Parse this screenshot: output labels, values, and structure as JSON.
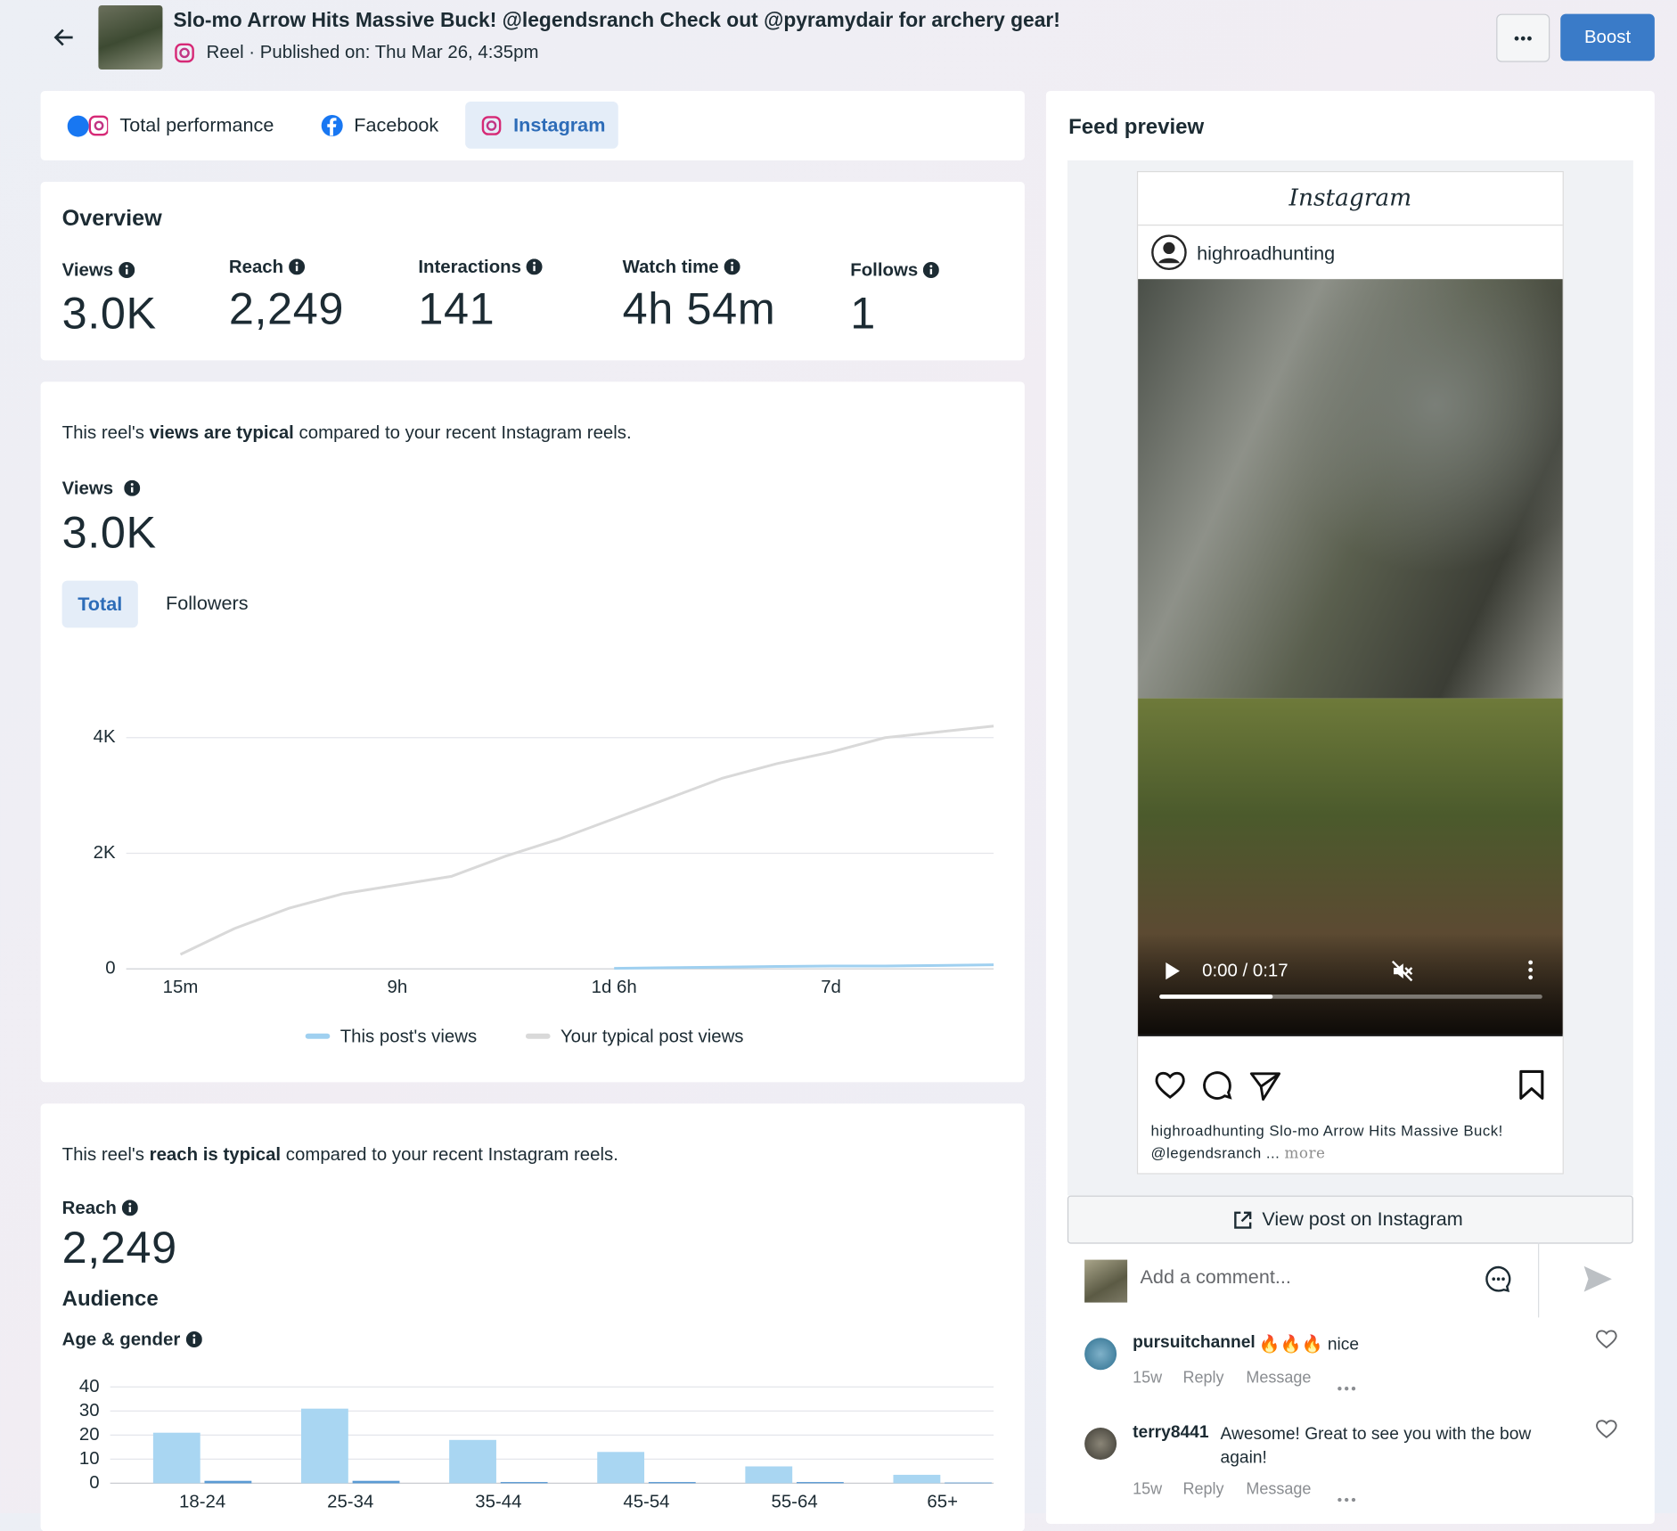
{
  "header": {
    "title": "Slo-mo Arrow Hits Massive Buck! @legendsranch Check out @pyramydair for archery gear!",
    "subtitle": "Reel · Published on: Thu Mar 26, 4:35pm",
    "boost": "Boost"
  },
  "tabs": [
    "Total performance",
    "Facebook",
    "Instagram"
  ],
  "overview": {
    "title": "Overview",
    "metrics": [
      {
        "label": "Views",
        "value": "3.0K"
      },
      {
        "label": "Reach",
        "value": "2,249"
      },
      {
        "label": "Interactions",
        "value": "141"
      },
      {
        "label": "Watch time",
        "value": "4h 54m"
      },
      {
        "label": "Follows",
        "value": "1"
      }
    ]
  },
  "views_card": {
    "summary_pre": "This reel's",
    "summary_bold": "views are typical",
    "summary_post": "compared to your recent Instagram reels.",
    "label": "Views",
    "value": "3.0K",
    "toggles": [
      "Total",
      "Followers"
    ]
  },
  "views_chart": {
    "type": "line",
    "x": [
      0,
      1,
      2,
      3,
      4,
      5,
      6,
      7,
      8,
      9,
      10,
      11,
      12,
      13,
      14,
      15
    ],
    "xlim": [
      -1,
      15
    ],
    "xticks": [
      {
        "value": 0,
        "label": "15m"
      },
      {
        "value": 4,
        "label": "9h"
      },
      {
        "value": 8,
        "label": "1d 6h"
      },
      {
        "value": 12,
        "label": "7d"
      }
    ],
    "ylim": [
      0,
      4200
    ],
    "yticks": [
      0,
      {
        "value": 2000,
        "label": "2K"
      },
      {
        "value": 4000,
        "label": "4K"
      }
    ],
    "grid": true,
    "series": [
      {
        "name": "This post's views",
        "color": "#9fd0f0",
        "values": [
          null,
          null,
          null,
          null,
          null,
          null,
          null,
          null,
          10,
          20,
          30,
          40,
          50,
          50,
          60,
          70
        ]
      },
      {
        "name": "Your typical post views",
        "color": "#d9d9d9",
        "values": [
          250,
          700,
          1050,
          1300,
          1450,
          1600,
          1950,
          2250,
          2600,
          2950,
          3300,
          3550,
          3750,
          4000,
          4100,
          4200
        ]
      }
    ]
  },
  "reach_card": {
    "summary_pre": "This reel's",
    "summary_bold": "reach is typical",
    "summary_post": "compared to your recent Instagram reels.",
    "label": "Reach",
    "value": "2,249",
    "audience": "Audience",
    "age_gender": "Age & gender"
  },
  "age_gender_chart": {
    "type": "bar",
    "categories": [
      "18-24",
      "25-34",
      "35-44",
      "45-54",
      "55-64",
      "65+"
    ],
    "ylim": [
      0,
      40
    ],
    "yticks": [
      0,
      10,
      20,
      30,
      40
    ],
    "grid": true,
    "series": [
      {
        "color": "#a9d6f2",
        "values": [
          21,
          31,
          18,
          13,
          7,
          3.5
        ]
      },
      {
        "color": "#5b9bd5",
        "values": [
          1,
          1,
          0.5,
          0.5,
          0.5,
          0.3
        ]
      }
    ]
  },
  "feed_preview": {
    "title": "Feed preview",
    "brand": "Instagram",
    "username": "highroadhunting",
    "video_time": "0:00 / 0:17",
    "caption_user": "highroadhunting",
    "caption": "Slo-mo Arrow Hits Massive Buck! @legendsranch ...",
    "more": "more",
    "view_post": "View post on Instagram",
    "comment_placeholder": "Add a comment...",
    "comments": [
      {
        "user": "pursuitchannel",
        "text": "🔥🔥🔥 nice",
        "age": "15w",
        "reply": "Reply",
        "message": "Message"
      },
      {
        "user": "terry8441",
        "text": "Awesome! Great to see you with the bow again!",
        "age": "15w",
        "reply": "Reply",
        "message": "Message"
      }
    ]
  }
}
